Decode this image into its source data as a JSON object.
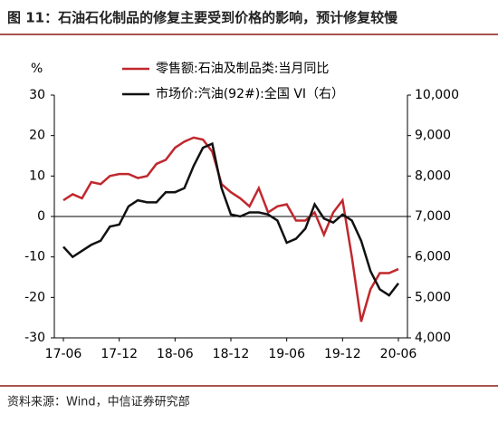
{
  "chart_data": {
    "type": "line",
    "title": "图 11：石油石化制品的修复主要受到价格的影响，预计修复较慢",
    "source": "资料来源：Wind，中信证券研究部",
    "y_label": "%",
    "categories": [
      "17-06",
      null,
      null,
      null,
      null,
      null,
      "17-12",
      null,
      null,
      null,
      null,
      null,
      "18-06",
      null,
      null,
      null,
      null,
      null,
      "18-12",
      null,
      null,
      null,
      null,
      null,
      "19-06",
      null,
      null,
      null,
      null,
      null,
      "19-12",
      null,
      null,
      null,
      null,
      null,
      "20-06"
    ],
    "series": [
      {
        "name": "零售额:石油及制品类:当月同比",
        "color": "#c0282d",
        "values": [
          4,
          5.5,
          4.5,
          8.5,
          8,
          10,
          10.5,
          10.5,
          9.5,
          10,
          13,
          14,
          17,
          18.5,
          19.5,
          19,
          16,
          8,
          6,
          4.5,
          2.5,
          7,
          1,
          2.5,
          3,
          -1,
          -1,
          1,
          -4.5,
          1,
          4,
          -10,
          -26,
          -18,
          -14,
          -14,
          -13
        ]
      },
      {
        "name": "市场价:汽油(92#):全国 VI（右）",
        "color": "#111111",
        "axis": "y2",
        "values": [
          6250,
          6000,
          6150,
          6300,
          6400,
          6750,
          6800,
          7250,
          7400,
          7350,
          7350,
          7600,
          7600,
          7700,
          8250,
          8700,
          8800,
          7700,
          7050,
          7000,
          7100,
          7100,
          7050,
          6900,
          6350,
          6450,
          6700,
          7300,
          6950,
          6850,
          7050,
          6900,
          6400,
          5650,
          5200,
          5050,
          5350
        ]
      }
    ],
    "ylim": [
      -30,
      30
    ],
    "yticks": [
      -30,
      -20,
      -10,
      0,
      10,
      20,
      30
    ],
    "y2lim": [
      4000,
      10000
    ],
    "y2ticks": [
      {
        "value": 4000,
        "label": "4,000"
      },
      {
        "value": 5000,
        "label": "5,000"
      },
      {
        "value": 6000,
        "label": "6,000"
      },
      {
        "value": 7000,
        "label": "7,000"
      },
      {
        "value": 8000,
        "label": "8,000"
      },
      {
        "value": 9000,
        "label": "9,000"
      },
      {
        "value": 10000,
        "label": "10,000"
      }
    ]
  }
}
